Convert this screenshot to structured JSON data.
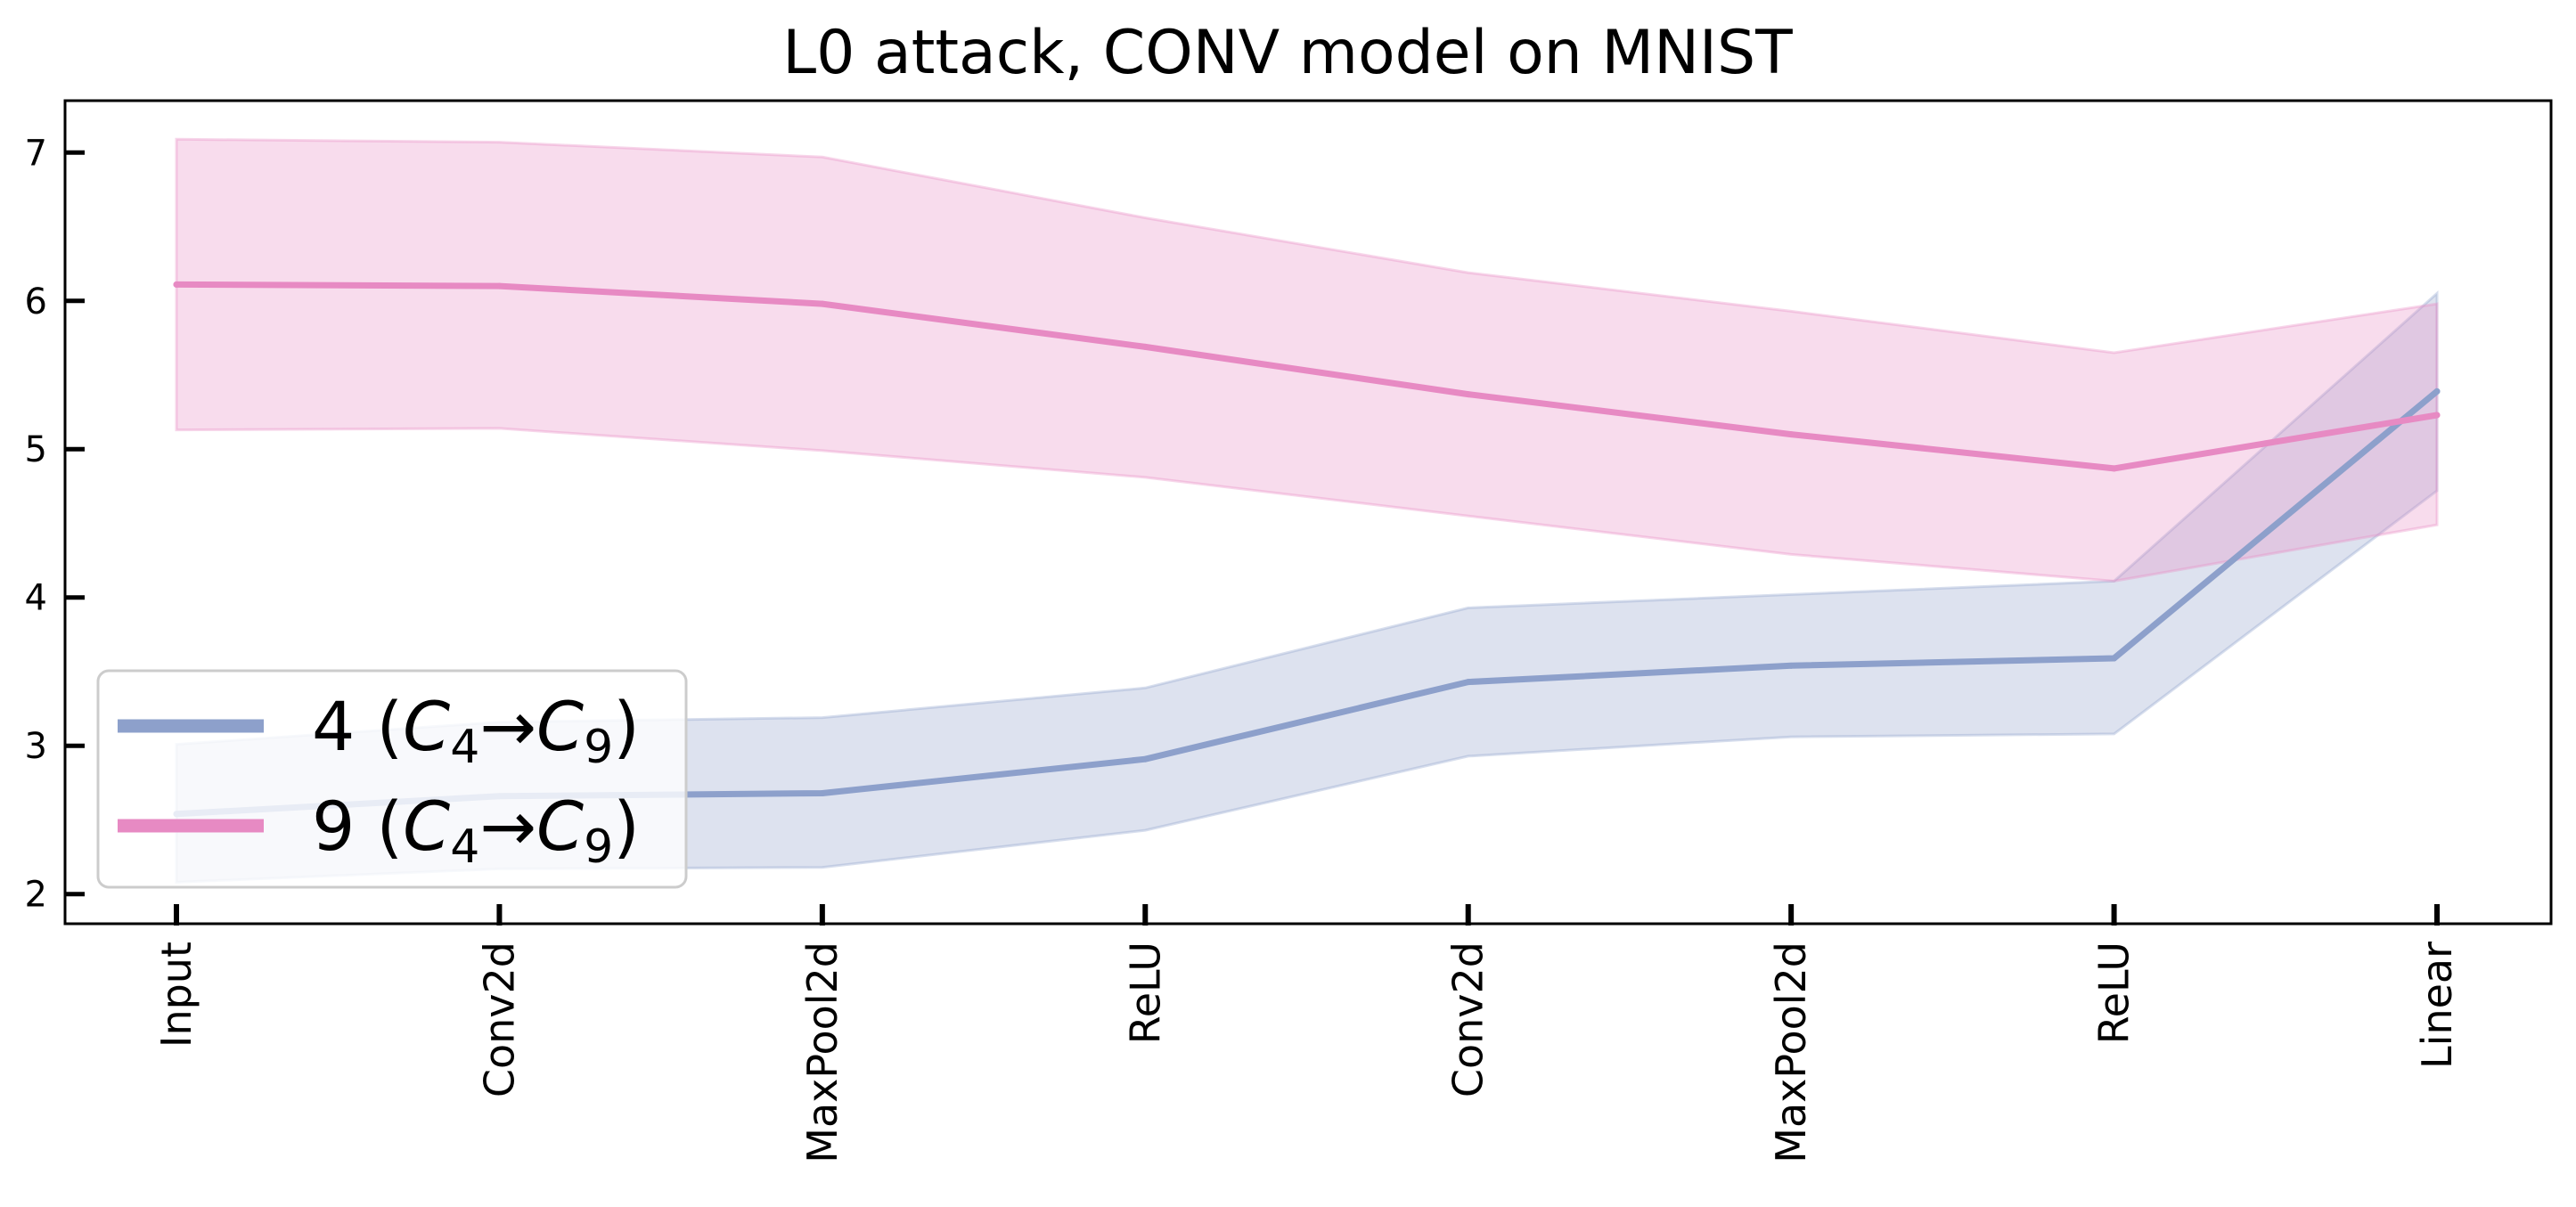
{
  "chart_data": {
    "type": "line",
    "title": "L0 attack, CONV model on  MNIST",
    "xlabel": "",
    "ylabel": "",
    "categories": [
      "Input",
      "Conv2d",
      "MaxPool2d",
      "ReLU",
      "Conv2d",
      "MaxPool2d",
      "ReLU",
      "Linear"
    ],
    "ylim": [
      1.8,
      7.35
    ],
    "yticks": [
      2,
      3,
      4,
      5,
      6,
      7
    ],
    "grid": false,
    "legend_position": "lower-left",
    "series": [
      {
        "name": "4 (C4→C9)",
        "legend_number": "4",
        "legend_from": "4",
        "legend_to": "9",
        "color": "#8da0cb",
        "values": [
          2.54,
          2.66,
          2.68,
          2.91,
          3.43,
          3.54,
          3.59,
          5.39
        ],
        "lower": [
          2.08,
          2.17,
          2.18,
          2.43,
          2.93,
          3.06,
          3.08,
          4.72
        ],
        "upper": [
          3.01,
          3.16,
          3.19,
          3.39,
          3.93,
          4.02,
          4.11,
          6.05
        ]
      },
      {
        "name": "9 (C4→C9)",
        "legend_number": "9",
        "legend_from": "4",
        "legend_to": "9",
        "color": "#e78ac3",
        "values": [
          6.11,
          6.1,
          5.98,
          5.69,
          5.37,
          5.1,
          4.87,
          5.23
        ],
        "lower": [
          5.13,
          5.14,
          4.99,
          4.81,
          4.55,
          4.29,
          4.11,
          4.49
        ],
        "upper": [
          7.09,
          7.07,
          6.97,
          6.56,
          6.19,
          5.93,
          5.65,
          5.98
        ]
      }
    ]
  }
}
